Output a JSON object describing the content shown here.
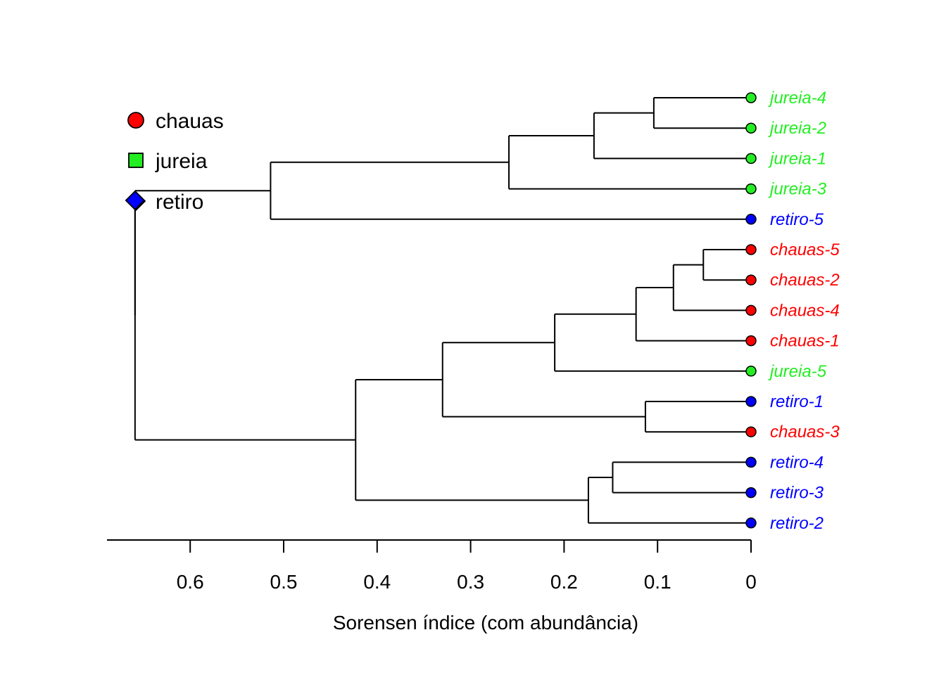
{
  "chart_data": {
    "type": "dendrogram",
    "xlabel": "Sorensen índice (com abundância)",
    "xlim": [
      0.69,
      0
    ],
    "xticks": [
      {
        "value": 0.6,
        "label": "0.6"
      },
      {
        "value": 0.5,
        "label": "0.5"
      },
      {
        "value": 0.4,
        "label": "0.4"
      },
      {
        "value": 0.3,
        "label": "0.3"
      },
      {
        "value": 0.2,
        "label": "0.2"
      },
      {
        "value": 0.1,
        "label": "0.1"
      },
      {
        "value": 0,
        "label": "0"
      }
    ],
    "groups": [
      {
        "name": "chauas",
        "color": "#ff0000",
        "marker": "circle"
      },
      {
        "name": "jureia",
        "color": "#22ee22",
        "marker": "square"
      },
      {
        "name": "retiro",
        "color": "#0000ff",
        "marker": "diamond"
      }
    ],
    "leaves": [
      {
        "label": "jureia-4",
        "group": "jureia"
      },
      {
        "label": "jureia-2",
        "group": "jureia"
      },
      {
        "label": "jureia-1",
        "group": "jureia"
      },
      {
        "label": "jureia-3",
        "group": "jureia"
      },
      {
        "label": "retiro-5",
        "group": "retiro"
      },
      {
        "label": "chauas-5",
        "group": "chauas"
      },
      {
        "label": "chauas-2",
        "group": "chauas"
      },
      {
        "label": "chauas-4",
        "group": "chauas"
      },
      {
        "label": "chauas-1",
        "group": "chauas"
      },
      {
        "label": "jureia-5",
        "group": "jureia"
      },
      {
        "label": "retiro-1",
        "group": "retiro"
      },
      {
        "label": "chauas-3",
        "group": "chauas"
      },
      {
        "label": "retiro-4",
        "group": "retiro"
      },
      {
        "label": "retiro-3",
        "group": "retiro"
      },
      {
        "label": "retiro-2",
        "group": "retiro"
      }
    ],
    "merges": [
      {
        "id": "a",
        "height": 0.104,
        "children": [
          "jureia-4",
          "jureia-2"
        ]
      },
      {
        "id": "b",
        "height": 0.168,
        "children": [
          "a",
          "jureia-1"
        ]
      },
      {
        "id": "c",
        "height": 0.259,
        "children": [
          "b",
          "jureia-3"
        ]
      },
      {
        "id": "d",
        "height": 0.514,
        "children": [
          "c",
          "retiro-5"
        ]
      },
      {
        "id": "e",
        "height": 0.051,
        "children": [
          "chauas-5",
          "chauas-2"
        ]
      },
      {
        "id": "f",
        "height": 0.083,
        "children": [
          "e",
          "chauas-4"
        ]
      },
      {
        "id": "g",
        "height": 0.123,
        "children": [
          "f",
          "chauas-1"
        ]
      },
      {
        "id": "h",
        "height": 0.21,
        "children": [
          "g",
          "jureia-5"
        ]
      },
      {
        "id": "i",
        "height": 0.113,
        "children": [
          "retiro-1",
          "chauas-3"
        ]
      },
      {
        "id": "j",
        "height": 0.33,
        "children": [
          "h",
          "i"
        ]
      },
      {
        "id": "k",
        "height": 0.148,
        "children": [
          "retiro-4",
          "retiro-3"
        ]
      },
      {
        "id": "l",
        "height": 0.174,
        "children": [
          "k",
          "retiro-2"
        ]
      },
      {
        "id": "m",
        "height": 0.423,
        "children": [
          "j",
          "l"
        ]
      },
      {
        "id": "root",
        "height": 0.659,
        "children": [
          "d",
          "m"
        ]
      }
    ],
    "root_marker": {
      "group": "retiro",
      "marker": "diamond"
    }
  }
}
